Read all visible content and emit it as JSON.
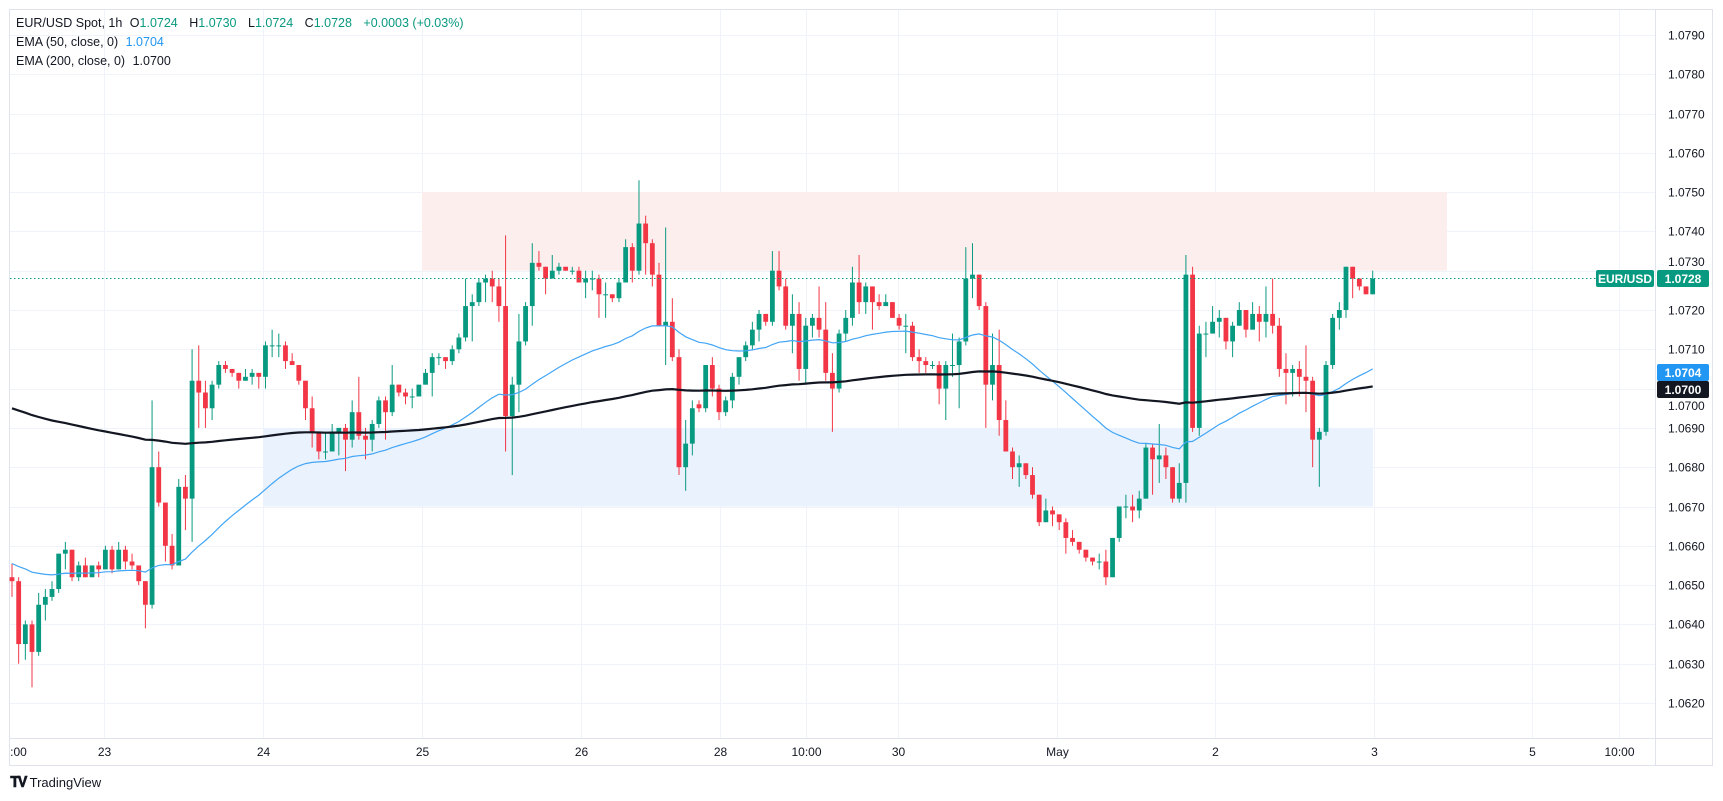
{
  "legend": {
    "symbol": "EUR/USD Spot, 1h",
    "open_label": "O",
    "open": "1.0724",
    "high_label": "H",
    "high": "1.0730",
    "low_label": "L",
    "low": "1.0724",
    "close_label": "C",
    "close": "1.0728",
    "change": "+0.0003 (+0.03%)",
    "ema50_label": "EMA (50, close, 0)",
    "ema50_value": "1.0704",
    "ema200_label": "EMA (200, close, 0)",
    "ema200_value": "1.0700"
  },
  "badges": {
    "symbol": "EUR/USD",
    "last_price": "1.0728",
    "ema50": "1.0704",
    "ema200": "1.0700"
  },
  "branding": {
    "name": "TradingView"
  },
  "colors": {
    "up": "#089981",
    "down": "#f23645",
    "ema50": "#42a5f5",
    "ema200": "#131722",
    "resistance_zone": "#fdeeee",
    "support_zone": "#eaf2fd",
    "last_price_line": "#089981"
  },
  "chart_data": {
    "type": "candlestick",
    "title": "EUR/USD Spot, 1h",
    "interval": "1h",
    "ylim": [
      1.0612,
      1.0797
    ],
    "y_ticks": [
      "1.0790",
      "1.0780",
      "1.0770",
      "1.0760",
      "1.0750",
      "1.0740",
      "1.0730",
      "1.0720",
      "1.0710",
      "1.0700",
      "1.0690",
      "1.0680",
      "1.0670",
      "1.0660",
      "1.0650",
      "1.0640",
      "1.0630",
      "1.0620"
    ],
    "x_ticks": [
      ":00",
      "23",
      "24",
      "25",
      "26",
      "28",
      "10:00",
      "30",
      "May",
      "2",
      "3",
      "5",
      "10:00"
    ],
    "grid": true,
    "last_price": 1.0728,
    "zones": [
      {
        "kind": "resistance",
        "low": 1.073,
        "high": 1.075
      },
      {
        "kind": "support",
        "low": 1.067,
        "high": 1.069
      }
    ],
    "indicators": [
      {
        "name": "EMA (50, close, 0)",
        "period": 50,
        "start": 1.06555,
        "last": 1.0704
      },
      {
        "name": "EMA (200, close, 0)",
        "period": 200,
        "start": 1.0695,
        "last": 1.07
      }
    ],
    "ohlc": [
      [
        1.0652,
        1.06555,
        1.0647,
        1.0651
      ],
      [
        1.0651,
        1.0652,
        1.063,
        1.0635
      ],
      [
        1.0635,
        1.0641,
        1.0631,
        1.064
      ],
      [
        1.064,
        1.0641,
        1.0624,
        1.0633
      ],
      [
        1.0633,
        1.0648,
        1.0632,
        1.0645
      ],
      [
        1.0645,
        1.0649,
        1.0641,
        1.0647
      ],
      [
        1.0647,
        1.0651,
        1.0646,
        1.0649
      ],
      [
        1.0649,
        1.0658,
        1.0648,
        1.0658
      ],
      [
        1.0658,
        1.0661,
        1.0654,
        1.0659
      ],
      [
        1.0659,
        1.0659,
        1.0651,
        1.0652
      ],
      [
        1.0652,
        1.0656,
        1.0651,
        1.0655
      ],
      [
        1.0655,
        1.0657,
        1.0652,
        1.0652
      ],
      [
        1.0652,
        1.0655,
        1.0652,
        1.0655
      ],
      [
        1.0655,
        1.0656,
        1.0652,
        1.0654
      ],
      [
        1.0654,
        1.066,
        1.0654,
        1.0659
      ],
      [
        1.0659,
        1.066,
        1.0653,
        1.0654
      ],
      [
        1.0654,
        1.0661,
        1.0654,
        1.0659
      ],
      [
        1.0659,
        1.066,
        1.0654,
        1.0656
      ],
      [
        1.0656,
        1.0658,
        1.0654,
        1.0655
      ],
      [
        1.0655,
        1.0655,
        1.065,
        1.0651
      ],
      [
        1.0651,
        1.0651,
        1.0639,
        1.0645
      ],
      [
        1.0645,
        1.0697,
        1.0644,
        1.068
      ],
      [
        1.068,
        1.0684,
        1.067,
        1.0671
      ],
      [
        1.0671,
        1.0671,
        1.0656,
        1.066
      ],
      [
        1.066,
        1.0663,
        1.0654,
        1.0655
      ],
      [
        1.0655,
        1.0677,
        1.0655,
        1.0675
      ],
      [
        1.0675,
        1.0678,
        1.0664,
        1.0672
      ],
      [
        1.0672,
        1.071,
        1.0661,
        1.0702
      ],
      [
        1.0702,
        1.0711,
        1.069,
        1.0699
      ],
      [
        1.0699,
        1.0702,
        1.069,
        1.0695
      ],
      [
        1.0695,
        1.0702,
        1.0692,
        1.0701
      ],
      [
        1.0701,
        1.0707,
        1.07,
        1.0706
      ],
      [
        1.0706,
        1.0707,
        1.0704,
        1.0705
      ],
      [
        1.0705,
        1.0705,
        1.0703,
        1.0704
      ],
      [
        1.0704,
        1.0704,
        1.07,
        1.0702
      ],
      [
        1.0702,
        1.0705,
        1.0702,
        1.0703
      ],
      [
        1.0703,
        1.0705,
        1.0701,
        1.0704
      ],
      [
        1.0704,
        1.0704,
        1.07,
        1.0703
      ],
      [
        1.0703,
        1.0712,
        1.07,
        1.0711
      ],
      [
        1.0711,
        1.0715,
        1.0708,
        1.0711
      ],
      [
        1.0711,
        1.0714,
        1.0708,
        1.0711
      ],
      [
        1.0711,
        1.0712,
        1.0705,
        1.0707
      ],
      [
        1.0707,
        1.0709,
        1.0706,
        1.0706
      ],
      [
        1.0706,
        1.0706,
        1.0701,
        1.0702
      ],
      [
        1.0702,
        1.0702,
        1.0692,
        1.0695
      ],
      [
        1.0695,
        1.0698,
        1.0685,
        1.0689
      ],
      [
        1.0689,
        1.0689,
        1.0682,
        1.0684
      ],
      [
        1.0684,
        1.0689,
        1.0682,
        1.0684
      ],
      [
        1.0684,
        1.0691,
        1.0684,
        1.0689
      ],
      [
        1.0689,
        1.069,
        1.0683,
        1.069
      ],
      [
        1.069,
        1.0691,
        1.0679,
        1.0687
      ],
      [
        1.0687,
        1.0697,
        1.0685,
        1.0694
      ],
      [
        1.0694,
        1.0703,
        1.0687,
        1.0688
      ],
      [
        1.0688,
        1.069,
        1.0682,
        1.0687
      ],
      [
        1.0687,
        1.0692,
        1.0684,
        1.0691
      ],
      [
        1.0691,
        1.0698,
        1.069,
        1.0697
      ],
      [
        1.0697,
        1.0698,
        1.0687,
        1.0694
      ],
      [
        1.0694,
        1.0706,
        1.0693,
        1.0701
      ],
      [
        1.0701,
        1.0701,
        1.0698,
        1.0699
      ],
      [
        1.0699,
        1.07,
        1.0696,
        1.0698
      ],
      [
        1.0698,
        1.07,
        1.0695,
        1.0698
      ],
      [
        1.0698,
        1.0701,
        1.0698,
        1.0701
      ],
      [
        1.0701,
        1.0705,
        1.0701,
        1.0704
      ],
      [
        1.0704,
        1.0709,
        1.0698,
        1.0708
      ],
      [
        1.0708,
        1.0709,
        1.0706,
        1.0708
      ],
      [
        1.0708,
        1.0708,
        1.0705,
        1.0707
      ],
      [
        1.0707,
        1.0711,
        1.0706,
        1.071
      ],
      [
        1.071,
        1.0714,
        1.0709,
        1.0713
      ],
      [
        1.0713,
        1.0728,
        1.0712,
        1.0721
      ],
      [
        1.0721,
        1.0724,
        1.0712,
        1.0722
      ],
      [
        1.0722,
        1.0728,
        1.0721,
        1.0727
      ],
      [
        1.0727,
        1.0729,
        1.0722,
        1.0728
      ],
      [
        1.0728,
        1.073,
        1.0722,
        1.0726
      ],
      [
        1.0726,
        1.0728,
        1.0717,
        1.0721
      ],
      [
        1.0721,
        1.0739,
        1.0684,
        1.0693
      ],
      [
        1.0693,
        1.0703,
        1.0678,
        1.0701
      ],
      [
        1.0701,
        1.0719,
        1.0694,
        1.0712
      ],
      [
        1.0712,
        1.0722,
        1.0711,
        1.0721
      ],
      [
        1.0721,
        1.0737,
        1.0716,
        1.0732
      ],
      [
        1.0732,
        1.0735,
        1.073,
        1.0731
      ],
      [
        1.0731,
        1.0731,
        1.0724,
        1.0728
      ],
      [
        1.0728,
        1.0734,
        1.0728,
        1.073
      ],
      [
        1.073,
        1.0732,
        1.0729,
        1.0731
      ],
      [
        1.0731,
        1.0731,
        1.073,
        1.073
      ],
      [
        1.073,
        1.0731,
        1.0729,
        1.073
      ],
      [
        1.073,
        1.0731,
        1.0727,
        1.0727
      ],
      [
        1.0727,
        1.073,
        1.0723,
        1.0728
      ],
      [
        1.0728,
        1.073,
        1.0725,
        1.0728
      ],
      [
        1.0728,
        1.0729,
        1.0718,
        1.0724
      ],
      [
        1.0724,
        1.0727,
        1.0718,
        1.0724
      ],
      [
        1.0724,
        1.0724,
        1.0722,
        1.0723
      ],
      [
        1.0723,
        1.0728,
        1.0722,
        1.0727
      ],
      [
        1.0727,
        1.0738,
        1.0727,
        1.0736
      ],
      [
        1.0736,
        1.0737,
        1.0727,
        1.073
      ],
      [
        1.073,
        1.0753,
        1.0729,
        1.0742
      ],
      [
        1.0742,
        1.0744,
        1.0729,
        1.0737
      ],
      [
        1.0737,
        1.0738,
        1.0726,
        1.0729
      ],
      [
        1.0729,
        1.0732,
        1.0716,
        1.0716
      ],
      [
        1.0716,
        1.0741,
        1.0706,
        1.0717
      ],
      [
        1.0717,
        1.0723,
        1.0707,
        1.0708
      ],
      [
        1.0708,
        1.071,
        1.0678,
        1.068
      ],
      [
        1.068,
        1.0692,
        1.0674,
        1.0686
      ],
      [
        1.0686,
        1.0697,
        1.0683,
        1.0695
      ],
      [
        1.0696,
        1.0697,
        1.0694,
        1.0695
      ],
      [
        1.0695,
        1.0706,
        1.0694,
        1.0706
      ],
      [
        1.0706,
        1.0708,
        1.0698,
        1.07
      ],
      [
        1.07,
        1.0701,
        1.0692,
        1.0694
      ],
      [
        1.0694,
        1.0698,
        1.0693,
        1.0697
      ],
      [
        1.0697,
        1.0704,
        1.0695,
        1.0703
      ],
      [
        1.0703,
        1.0708,
        1.0701,
        1.0708
      ],
      [
        1.0708,
        1.0712,
        1.0707,
        1.0711
      ],
      [
        1.0711,
        1.0717,
        1.071,
        1.0715
      ],
      [
        1.0715,
        1.072,
        1.0712,
        1.0719
      ],
      [
        1.0719,
        1.0719,
        1.0716,
        1.0717
      ],
      [
        1.0717,
        1.0735,
        1.0716,
        1.073
      ],
      [
        1.073,
        1.0735,
        1.0725,
        1.0726
      ],
      [
        1.0726,
        1.0728,
        1.0715,
        1.0716
      ],
      [
        1.0716,
        1.0724,
        1.0709,
        1.0719
      ],
      [
        1.0719,
        1.0722,
        1.0702,
        1.0705
      ],
      [
        1.0705,
        1.0718,
        1.0701,
        1.0716
      ],
      [
        1.0716,
        1.0719,
        1.0713,
        1.0718
      ],
      [
        1.0718,
        1.0726,
        1.0713,
        1.0715
      ],
      [
        1.0715,
        1.0722,
        1.0702,
        1.0704
      ],
      [
        1.0704,
        1.0709,
        1.0689,
        1.07
      ],
      [
        1.07,
        1.0715,
        1.0699,
        1.0714
      ],
      [
        1.0714,
        1.072,
        1.0712,
        1.0718
      ],
      [
        1.0718,
        1.0731,
        1.0716,
        1.0727
      ],
      [
        1.0727,
        1.0734,
        1.0719,
        1.0722
      ],
      [
        1.0722,
        1.0727,
        1.0719,
        1.0726
      ],
      [
        1.0726,
        1.0726,
        1.0715,
        1.0722
      ],
      [
        1.0722,
        1.0724,
        1.072,
        1.0721
      ],
      [
        1.0721,
        1.0724,
        1.0721,
        1.0722
      ],
      [
        1.0722,
        1.0722,
        1.0718,
        1.0718
      ],
      [
        1.0718,
        1.0719,
        1.0715,
        1.0716
      ],
      [
        1.0716,
        1.0719,
        1.0709,
        1.0716
      ],
      [
        1.0716,
        1.0717,
        1.0707,
        1.0708
      ],
      [
        1.0708,
        1.071,
        1.0704,
        1.0707
      ],
      [
        1.0707,
        1.0708,
        1.0704,
        1.0706
      ],
      [
        1.0706,
        1.0707,
        1.0705,
        1.0706
      ],
      [
        1.0706,
        1.0707,
        1.0696,
        1.07
      ],
      [
        1.07,
        1.0707,
        1.0692,
        1.0706
      ],
      [
        1.0706,
        1.0714,
        1.0703,
        1.0706
      ],
      [
        1.0706,
        1.0713,
        1.0695,
        1.0712
      ],
      [
        1.0712,
        1.0736,
        1.0711,
        1.0728
      ],
      [
        1.0728,
        1.0737,
        1.0723,
        1.0729
      ],
      [
        1.0729,
        1.0729,
        1.072,
        1.0721
      ],
      [
        1.0721,
        1.0722,
        1.069,
        1.0701
      ],
      [
        1.0701,
        1.0714,
        1.0697,
        1.0706
      ],
      [
        1.0706,
        1.0715,
        1.0688,
        1.0692
      ],
      [
        1.0692,
        1.0697,
        1.0684,
        1.0684
      ],
      [
        1.0684,
        1.0685,
        1.0677,
        1.068
      ],
      [
        1.068,
        1.0683,
        1.0675,
        1.0681
      ],
      [
        1.0681,
        1.0681,
        1.0677,
        1.0678
      ],
      [
        1.0678,
        1.068,
        1.0672,
        1.0673
      ],
      [
        1.0673,
        1.0673,
        1.0665,
        1.0666
      ],
      [
        1.0666,
        1.0672,
        1.0666,
        1.0669
      ],
      [
        1.0669,
        1.067,
        1.0665,
        1.0668
      ],
      [
        1.0668,
        1.0668,
        1.0664,
        1.0666
      ],
      [
        1.0666,
        1.0667,
        1.0658,
        1.0662
      ],
      [
        1.0662,
        1.0664,
        1.066,
        1.0661
      ],
      [
        1.0661,
        1.0661,
        1.0658,
        1.0659
      ],
      [
        1.0659,
        1.0659,
        1.0656,
        1.0657
      ],
      [
        1.0657,
        1.0657,
        1.0655,
        1.0656
      ],
      [
        1.0656,
        1.0658,
        1.0654,
        1.0656
      ],
      [
        1.0656,
        1.0659,
        1.065,
        1.0652
      ],
      [
        1.0652,
        1.0662,
        1.0652,
        1.0662
      ],
      [
        1.0662,
        1.067,
        1.0661,
        1.067
      ],
      [
        1.067,
        1.0673,
        1.0667,
        1.067
      ],
      [
        1.067,
        1.0673,
        1.0666,
        1.0669
      ],
      [
        1.0669,
        1.0674,
        1.0667,
        1.0672
      ],
      [
        1.0672,
        1.0686,
        1.0672,
        1.0685
      ],
      [
        1.0685,
        1.0686,
        1.0673,
        1.0682
      ],
      [
        1.0682,
        1.0691,
        1.0676,
        1.0683
      ],
      [
        1.0683,
        1.0685,
        1.0677,
        1.068
      ],
      [
        1.068,
        1.068,
        1.0671,
        1.0672
      ],
      [
        1.0672,
        1.0681,
        1.0671,
        1.0676
      ],
      [
        1.0676,
        1.0734,
        1.0671,
        1.0729
      ],
      [
        1.0729,
        1.0731,
        1.0689,
        1.069
      ],
      [
        1.069,
        1.0716,
        1.0688,
        1.0714
      ],
      [
        1.0714,
        1.0717,
        1.0708,
        1.0714
      ],
      [
        1.0714,
        1.0721,
        1.0714,
        1.0717
      ],
      [
        1.0717,
        1.072,
        1.0713,
        1.0718
      ],
      [
        1.0718,
        1.0718,
        1.071,
        1.0712
      ],
      [
        1.0712,
        1.0717,
        1.0708,
        1.0716
      ],
      [
        1.0716,
        1.0722,
        1.0716,
        1.072
      ],
      [
        1.072,
        1.072,
        1.0713,
        1.0715
      ],
      [
        1.0715,
        1.0722,
        1.0715,
        1.0719
      ],
      [
        1.0719,
        1.0721,
        1.0712,
        1.0717
      ],
      [
        1.0717,
        1.0726,
        1.0713,
        1.0719
      ],
      [
        1.0719,
        1.0728,
        1.0714,
        1.0716
      ],
      [
        1.0716,
        1.0718,
        1.0703,
        1.0705
      ],
      [
        1.0705,
        1.0709,
        1.0696,
        1.0704
      ],
      [
        1.0704,
        1.0706,
        1.0698,
        1.0705
      ],
      [
        1.0705,
        1.0707,
        1.0698,
        1.0703
      ],
      [
        1.0703,
        1.0711,
        1.0694,
        1.0702
      ],
      [
        1.0702,
        1.0703,
        1.068,
        1.0687
      ],
      [
        1.0687,
        1.069,
        1.0675,
        1.0689
      ],
      [
        1.0689,
        1.0707,
        1.0688,
        1.0706
      ],
      [
        1.0706,
        1.0719,
        1.0705,
        1.0718
      ],
      [
        1.0718,
        1.0722,
        1.0715,
        1.072
      ],
      [
        1.072,
        1.0731,
        1.0718,
        1.0731
      ],
      [
        1.0731,
        1.0731,
        1.0723,
        1.0728
      ],
      [
        1.0728,
        1.0728,
        1.0725,
        1.0726
      ],
      [
        1.0726,
        1.0726,
        1.0724,
        1.0724
      ],
      [
        1.0724,
        1.073,
        1.0724,
        1.0728
      ]
    ]
  }
}
